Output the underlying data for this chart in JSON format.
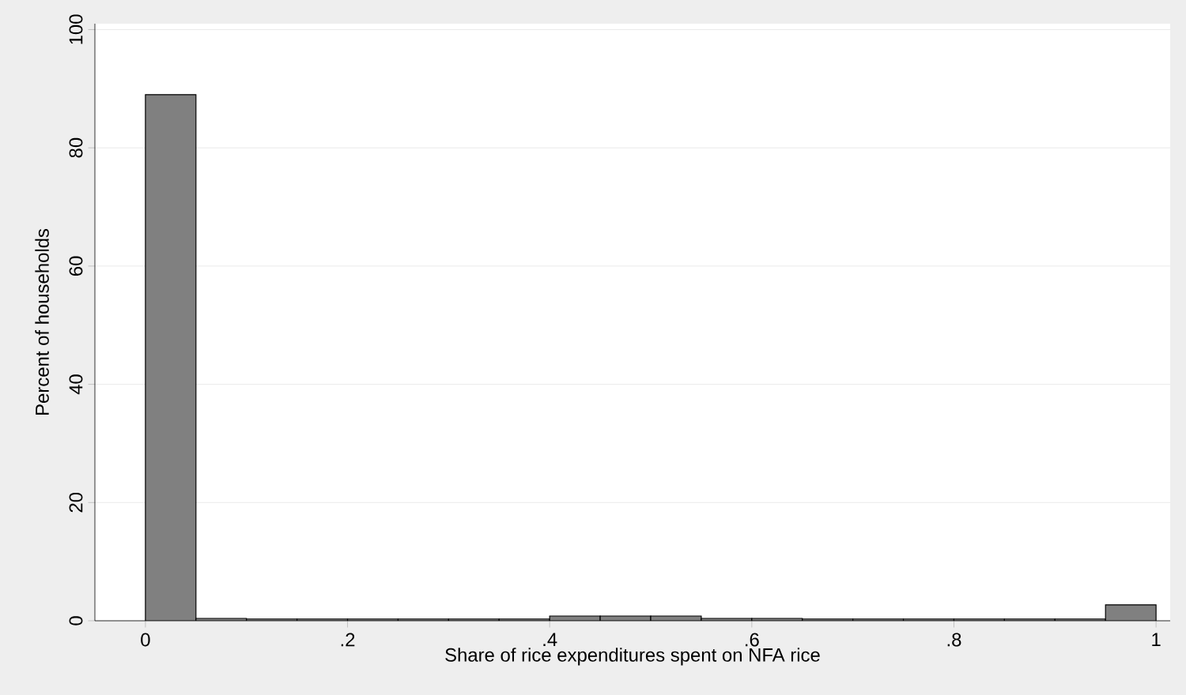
{
  "chart_data": {
    "type": "histogram",
    "xlabel": "Share of rice expenditures spent on NFA rice",
    "ylabel": "Percent of households",
    "bins": [
      0,
      0.05,
      0.1,
      0.15,
      0.2,
      0.25,
      0.3,
      0.35,
      0.4,
      0.45,
      0.5,
      0.55,
      0.6,
      0.65,
      0.7,
      0.75,
      0.8,
      0.85,
      0.9,
      0.95,
      1
    ],
    "values": [
      89,
      0.4,
      0.3,
      0.3,
      0.3,
      0.3,
      0.3,
      0.3,
      0.8,
      0.8,
      0.8,
      0.4,
      0.4,
      0.3,
      0.3,
      0.3,
      0.3,
      0.3,
      0.3,
      2.7
    ],
    "color": "#808080",
    "xlim": [
      -0.05,
      1.014
    ],
    "ylim": [
      0,
      101
    ],
    "xticks": [
      0,
      {
        "value": 0.2,
        "label": ".2"
      },
      {
        "value": 0.4,
        "label": ".4"
      },
      {
        "value": 0.6,
        "label": ".6"
      },
      {
        "value": 0.8,
        "label": ".8"
      },
      1
    ],
    "yticks": [
      0,
      20,
      40,
      60,
      80,
      100
    ],
    "grid": "y"
  }
}
